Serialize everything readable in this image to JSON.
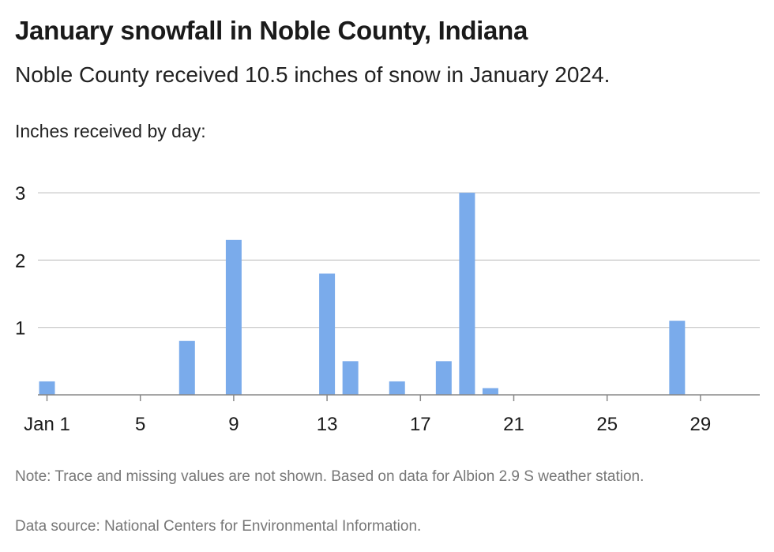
{
  "title": "January snowfall in Noble County, Indiana",
  "subtitle": "Noble County received 10.5 inches of snow in January 2024.",
  "notes": {
    "note": "Note: Trace and missing values are not shown. Based on data for Albion 2.9 S weather station.",
    "source": "Data source: National Centers for Environmental Information."
  },
  "chart_data": {
    "type": "bar",
    "ylabel": "Inches received by day:",
    "xlabel": "",
    "x_ticks": [
      {
        "day": 1,
        "label": "Jan 1"
      },
      {
        "day": 5,
        "label": "5"
      },
      {
        "day": 9,
        "label": "9"
      },
      {
        "day": 13,
        "label": "13"
      },
      {
        "day": 17,
        "label": "17"
      },
      {
        "day": 21,
        "label": "21"
      },
      {
        "day": 25,
        "label": "25"
      },
      {
        "day": 29,
        "label": "29"
      }
    ],
    "y_ticks": [
      1,
      2,
      3
    ],
    "ylim": [
      0,
      3
    ],
    "xlim": [
      1,
      31
    ],
    "grid": true,
    "bar_color": "#7aabeb",
    "days": [
      1,
      7,
      9,
      13,
      14,
      16,
      18,
      19,
      20,
      28
    ],
    "values": [
      0.2,
      0.8,
      2.3,
      1.8,
      0.5,
      0.2,
      0.5,
      3.0,
      0.1,
      1.1
    ]
  }
}
